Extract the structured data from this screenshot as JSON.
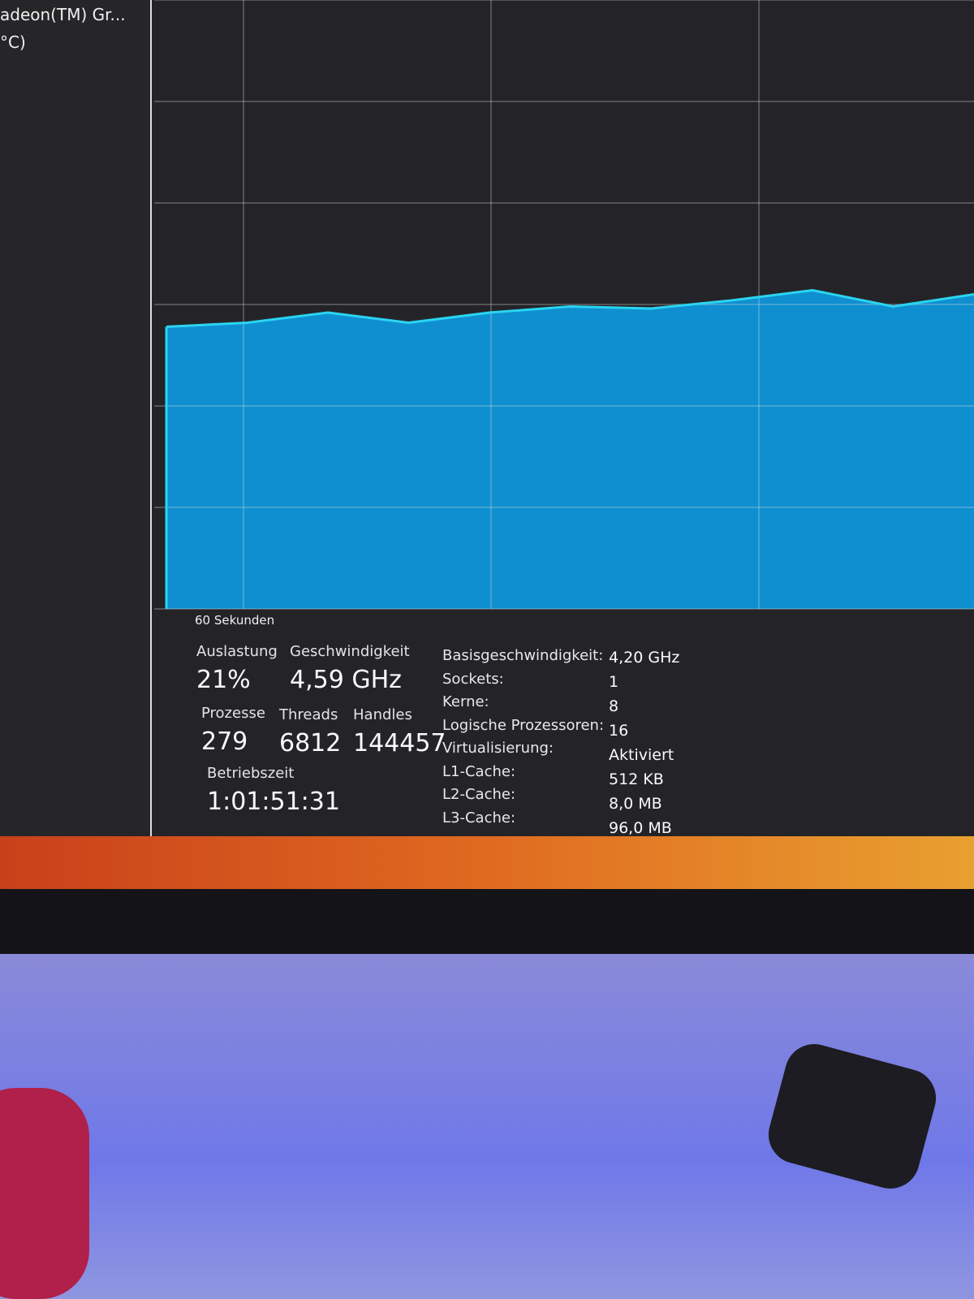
{
  "sidebar": [
    "adeon(TM) Gr...",
    "°C)"
  ],
  "graph": {
    "type": "area",
    "label": "60 Sekunden",
    "values": [
      27.8,
      28.2,
      29.2,
      28.2,
      29.2,
      29.8,
      29.6,
      30.4,
      31.4,
      29.8,
      31
    ],
    "ylim": [
      0,
      60
    ],
    "yticks": [
      0,
      10,
      20,
      30,
      40,
      50,
      60
    ],
    "grid": true,
    "color": "#0f8fd0",
    "line_color": "#2ad4f0"
  },
  "stats": [
    {
      "label": "Auslastung",
      "value": "21%"
    },
    {
      "label": "Geschwindigkeit",
      "value": "4,59 GHz"
    },
    {
      "label": "Prozesse",
      "value": "279"
    },
    {
      "label": "Threads",
      "value": "6812"
    },
    {
      "label": "Handles",
      "value": "144457"
    },
    {
      "label": "Betriebszeit",
      "value": "1:01:51:31"
    }
  ],
  "details": [
    {
      "key": "Basisgeschwindigkeit:",
      "value": "4,20 GHz"
    },
    {
      "key": "Sockets:",
      "value": "1"
    },
    {
      "key": "Kerne:",
      "value": "8"
    },
    {
      "key": "Logische Prozessoren:",
      "value": "16"
    },
    {
      "key": "Virtualisierung:",
      "value": "Aktiviert"
    },
    {
      "key": "L1-Cache:",
      "value": "512 KB"
    },
    {
      "key": "L2-Cache:",
      "value": "8,0 MB"
    },
    {
      "key": "L3-Cache:",
      "value": "96,0 MB"
    }
  ]
}
